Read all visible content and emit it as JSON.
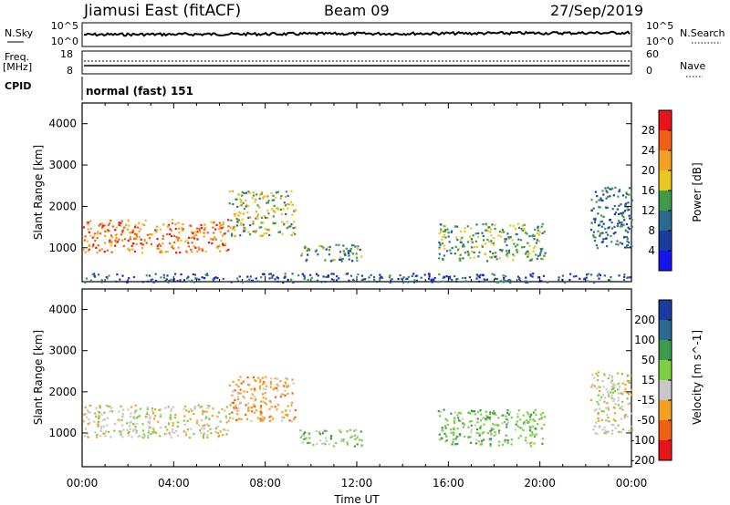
{
  "header": {
    "station": "Jiamusi East (fitACF)",
    "beam": "Beam 09",
    "date": "27/Sep/2019"
  },
  "nsky_panel": {
    "left_label": "N.Sky",
    "left_ticks": [
      "10^5",
      "10^0"
    ],
    "right_label": "N.Search",
    "right_ticks": [
      "10^5",
      "10^0"
    ]
  },
  "freq_panel": {
    "left_label_1": "Freq.",
    "left_label_2": "[MHz]",
    "left_ticks": [
      "18",
      "8"
    ],
    "right_label": "Nave",
    "right_ticks": [
      "60",
      "0"
    ]
  },
  "cpid": {
    "label": "CPID",
    "value": "normal (fast) 151"
  },
  "chart_data": [
    {
      "type": "heatmap",
      "ylabel": "Slant Range [km]",
      "y_ticks": [
        "4000",
        "3000",
        "2000",
        "1000"
      ],
      "ylim": [
        180,
        4500
      ],
      "colorbar": {
        "label": "Power [dB]",
        "ticks": [
          "28",
          "24",
          "20",
          "16",
          "12",
          "8",
          "4"
        ],
        "colors": [
          "#e8141a",
          "#f06010",
          "#f4a020",
          "#e8c820",
          "#3c9a4a",
          "#2a6a8e",
          "#1a3ca0",
          "#1414f0"
        ]
      },
      "features": [
        {
          "start_hour": 0.0,
          "end_hour": 6.4,
          "range_km": [
            900,
            1700
          ],
          "level_db": 22
        },
        {
          "start_hour": 6.4,
          "end_hour": 9.3,
          "range_km": [
            1300,
            2400
          ],
          "level_db": 14
        },
        {
          "start_hour": 9.5,
          "end_hour": 12.3,
          "range_km": [
            700,
            1100
          ],
          "level_db": 10
        },
        {
          "start_hour": 15.5,
          "end_hour": 20.2,
          "range_km": [
            700,
            1600
          ],
          "level_db": 12
        },
        {
          "start_hour": 22.2,
          "end_hour": 24.0,
          "range_km": [
            1000,
            2500
          ],
          "level_db": 8
        },
        {
          "start_hour": 0.0,
          "end_hour": 24.0,
          "range_km": [
            180,
            400
          ],
          "level_db": 6
        }
      ]
    },
    {
      "type": "heatmap",
      "ylabel": "Slant Range [km]",
      "y_ticks": [
        "4000",
        "3000",
        "2000",
        "1000"
      ],
      "ylim": [
        180,
        4500
      ],
      "colorbar": {
        "label": "Velocity [m s^-1]",
        "ticks": [
          "200",
          "100",
          "50",
          "15",
          "-15",
          "-50",
          "-100",
          "-200"
        ],
        "colors": [
          "#1a3ca0",
          "#2a6a8e",
          "#3c9a4a",
          "#7ad040",
          "#c8c8c8",
          "#f4a020",
          "#f06010",
          "#e8141a"
        ]
      },
      "features": [
        {
          "start_hour": 0.0,
          "end_hour": 6.4,
          "range_km": [
            900,
            1700
          ],
          "velocity": 0
        },
        {
          "start_hour": 6.4,
          "end_hour": 9.3,
          "range_km": [
            1300,
            2400
          ],
          "velocity": -30
        },
        {
          "start_hour": 9.5,
          "end_hour": 12.3,
          "range_km": [
            700,
            1100
          ],
          "velocity": 30
        },
        {
          "start_hour": 15.5,
          "end_hour": 20.2,
          "range_km": [
            700,
            1600
          ],
          "velocity": 40
        },
        {
          "start_hour": 22.2,
          "end_hour": 24.0,
          "range_km": [
            1000,
            2500
          ],
          "velocity": 0
        }
      ]
    }
  ],
  "x_axis": {
    "ticks": [
      "00:00",
      "04:00",
      "08:00",
      "12:00",
      "16:00",
      "20:00",
      "00:00"
    ],
    "label": "Time UT"
  }
}
